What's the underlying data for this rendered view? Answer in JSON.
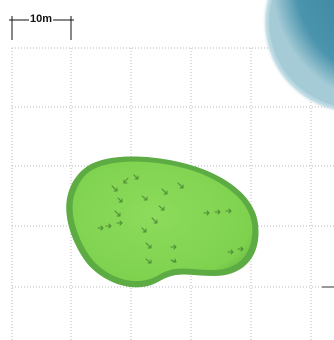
{
  "scale": {
    "label": "10m"
  },
  "colors": {
    "background": "#ffffff",
    "grid": "#b8b8b8",
    "green_fill": "#7ed24e",
    "green_edge": "#5cab43",
    "water": "#3e8aa4",
    "water_edge": "#79b2c4",
    "slope_arrow": "#4f8a39",
    "scale_bar": "#111111"
  },
  "icons": {
    "slope_arrow": "slope-arrow-icon",
    "water_hazard": "water-hazard-icon"
  }
}
